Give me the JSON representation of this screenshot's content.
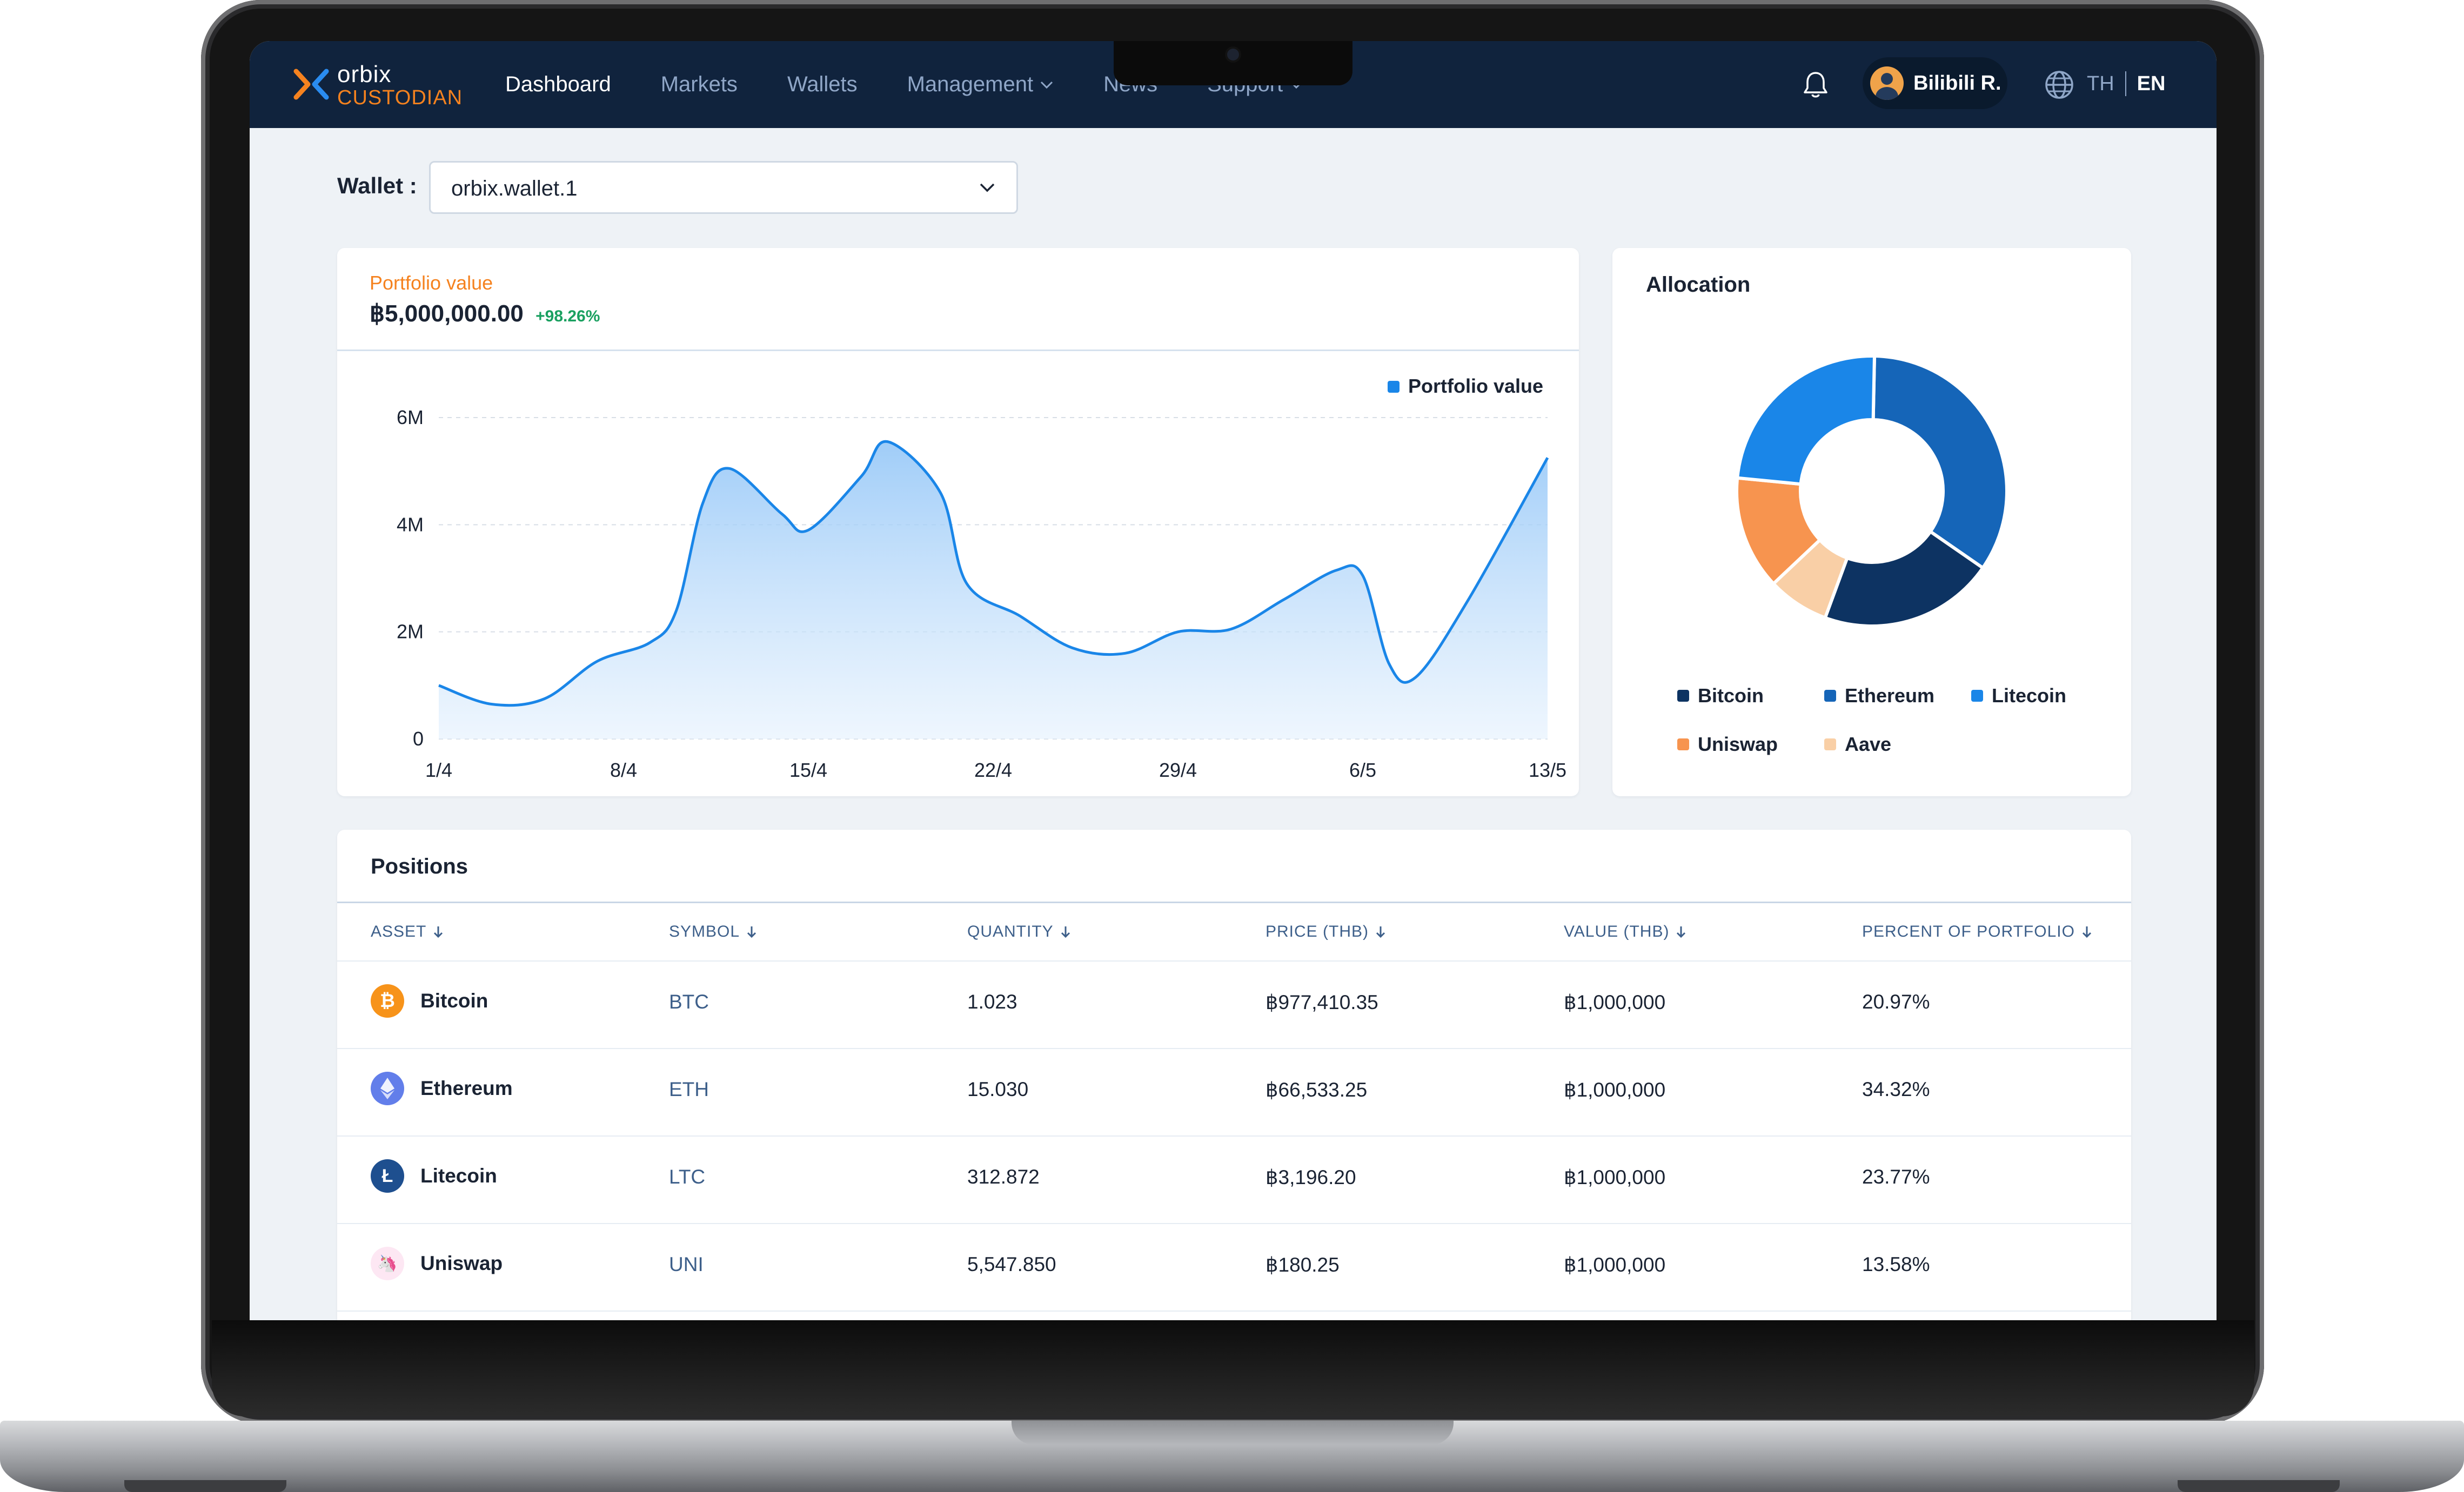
{
  "brand": {
    "name_line1": "orbix",
    "name_line2": "CUSTODIAN",
    "accent": "#f5821f",
    "navy": "#10233d"
  },
  "nav": {
    "items": [
      {
        "label": "Dashboard",
        "active": true
      },
      {
        "label": "Markets"
      },
      {
        "label": "Wallets"
      },
      {
        "label": "Management",
        "dropdown": true
      },
      {
        "label": "News"
      },
      {
        "label": "Support",
        "dropdown": true
      }
    ]
  },
  "header": {
    "user_name": "Bilibili R.",
    "lang_th": "TH",
    "lang_en": "EN"
  },
  "wallet": {
    "label": "Wallet :",
    "selected": "orbix.wallet.1"
  },
  "portfolio": {
    "label": "Portfolio value",
    "value": "฿5,000,000.00",
    "change": "+98.26%",
    "legend": "Portfolio value"
  },
  "chart_data": {
    "type": "area",
    "x_ticks": [
      "1/4",
      "8/4",
      "15/4",
      "22/4",
      "29/4",
      "6/5",
      "13/5"
    ],
    "y_ticks": [
      "0",
      "2M",
      "4M",
      "6M"
    ],
    "ylim": [
      0,
      6000000
    ],
    "grid": true,
    "legend_position": "top-right",
    "series": [
      {
        "name": "Portfolio value",
        "color": "#1a86e8",
        "points": [
          [
            "1/4",
            1000000
          ],
          [
            "3/4",
            650000
          ],
          [
            "5/4",
            750000
          ],
          [
            "7/4",
            1450000
          ],
          [
            "9/4",
            1800000
          ],
          [
            "10/4",
            2400000
          ],
          [
            "11/4",
            4400000
          ],
          [
            "12/4",
            5050000
          ],
          [
            "14/4",
            4200000
          ],
          [
            "15/4",
            3900000
          ],
          [
            "17/4",
            4900000
          ],
          [
            "18/4",
            5550000
          ],
          [
            "20/4",
            4600000
          ],
          [
            "21/4",
            2900000
          ],
          [
            "23/4",
            2300000
          ],
          [
            "25/4",
            1700000
          ],
          [
            "27/4",
            1600000
          ],
          [
            "29/4",
            2000000
          ],
          [
            "1/5",
            2050000
          ],
          [
            "3/5",
            2600000
          ],
          [
            "5/5",
            3150000
          ],
          [
            "6/5",
            3050000
          ],
          [
            "7/5",
            1400000
          ],
          [
            "8/5",
            1150000
          ],
          [
            "10/5",
            2600000
          ],
          [
            "13/5",
            5250000
          ]
        ]
      }
    ]
  },
  "allocation": {
    "title": "Allocation",
    "chart_data": {
      "type": "pie",
      "slices": [
        {
          "name": "Bitcoin",
          "value": 20.97,
          "color": "#0d3362"
        },
        {
          "name": "Ethereum",
          "value": 34.32,
          "color": "#1565b8"
        },
        {
          "name": "Litecoin",
          "value": 23.77,
          "color": "#1a86e8"
        },
        {
          "name": "Uniswap",
          "value": 13.58,
          "color": "#f7944f"
        },
        {
          "name": "Aave",
          "value": 7.36,
          "color": "#f9cfa6"
        }
      ]
    },
    "legend": [
      {
        "name": "Bitcoin",
        "color": "#0d3362"
      },
      {
        "name": "Ethereum",
        "color": "#1565b8"
      },
      {
        "name": "Litecoin",
        "color": "#1a86e8"
      },
      {
        "name": "Uniswap",
        "color": "#f7944f"
      },
      {
        "name": "Aave",
        "color": "#f9cfa6"
      }
    ]
  },
  "positions": {
    "title": "Positions",
    "columns": [
      "ASSET",
      "SYMBOL",
      "QUANTITY",
      "PRICE (THB)",
      "VALUE (THB)",
      "PERCENT OF PORTFOLIO"
    ],
    "rows": [
      {
        "asset": "Bitcoin",
        "icon": "bitcoin-icon",
        "symbol": "BTC",
        "quantity": "1.023",
        "price": "฿977,410.35",
        "value": "฿1,000,000",
        "percent": "20.97%"
      },
      {
        "asset": "Ethereum",
        "icon": "ethereum-icon",
        "symbol": "ETH",
        "quantity": "15.030",
        "price": "฿66,533.25",
        "value": "฿1,000,000",
        "percent": "34.32%"
      },
      {
        "asset": "Litecoin",
        "icon": "litecoin-icon",
        "symbol": "LTC",
        "quantity": "312.872",
        "price": "฿3,196.20",
        "value": "฿1,000,000",
        "percent": "23.77%"
      },
      {
        "asset": "Uniswap",
        "icon": "uniswap-icon",
        "symbol": "UNI",
        "quantity": "5,547.850",
        "price": "฿180.25",
        "value": "฿1,000,000",
        "percent": "13.58%"
      }
    ]
  }
}
